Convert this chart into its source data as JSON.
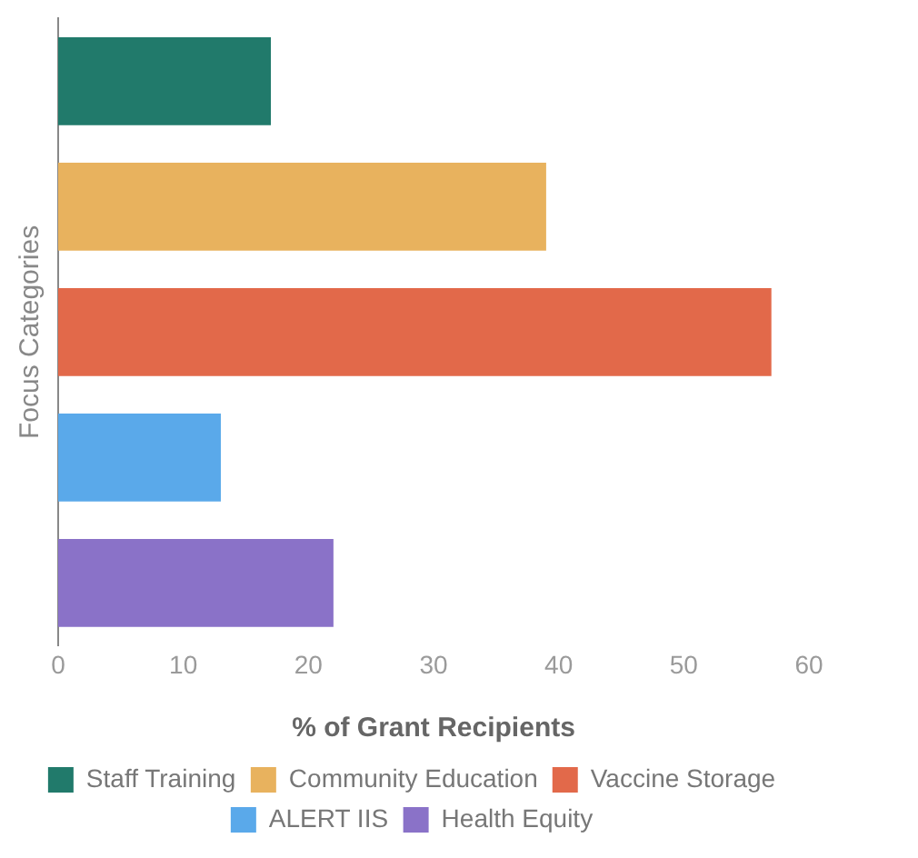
{
  "chart_data": {
    "type": "bar",
    "orientation": "horizontal",
    "xlabel": "% of Grant Recipients",
    "ylabel": "Focus Categories",
    "categories": [
      null,
      null,
      null,
      null,
      null
    ],
    "series": [
      {
        "name": "Staff Training",
        "color": "#217a6b",
        "values": [
          17,
          null,
          null,
          null,
          null
        ]
      },
      {
        "name": "Community Education",
        "color": "#e8b25e",
        "values": [
          null,
          39,
          null,
          null,
          null
        ]
      },
      {
        "name": "Vaccine Storage",
        "color": "#e2694a",
        "values": [
          null,
          null,
          57,
          null,
          null
        ]
      },
      {
        "name": "ALERT IIS",
        "color": "#5aa9ea",
        "values": [
          null,
          null,
          null,
          13,
          null
        ]
      },
      {
        "name": "Health Equity",
        "color": "#8a72c8",
        "values": [
          null,
          null,
          null,
          null,
          22
        ]
      }
    ],
    "xlim": [
      0,
      60
    ],
    "xticks": [
      0,
      10,
      20,
      30,
      40,
      50,
      60
    ],
    "grid": false,
    "legend": "bottom"
  }
}
